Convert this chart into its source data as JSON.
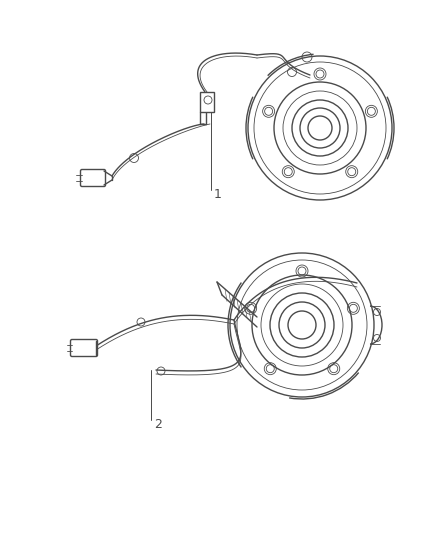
{
  "bg_color": "#ffffff",
  "line_color": "#4a4a4a",
  "lw": 1.0,
  "tlw": 0.6,
  "fig_width": 4.38,
  "fig_height": 5.33,
  "dpi": 100,
  "label1": "1",
  "label2": "2"
}
